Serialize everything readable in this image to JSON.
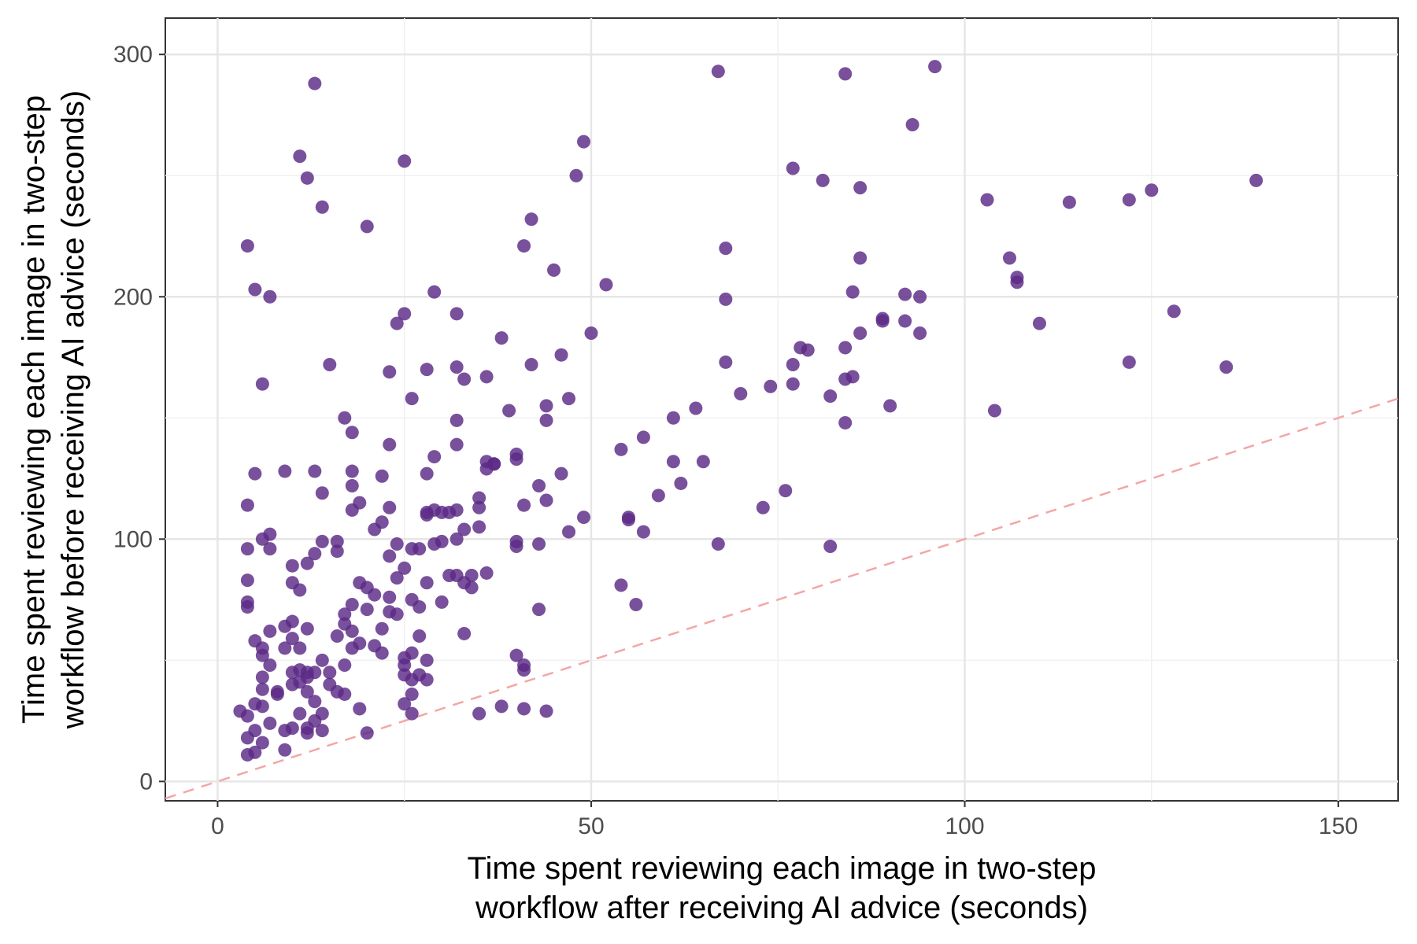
{
  "chart_data": {
    "type": "scatter",
    "xlabel": [
      "Time spent reviewing each image in two-step",
      "workflow after receiving AI advice (seconds)"
    ],
    "ylabel": [
      "Time spent reviewing each image in two-step",
      "workflow before receiving AI advice (seconds)"
    ],
    "xlim": [
      -7,
      158
    ],
    "ylim": [
      -8,
      315
    ],
    "xticks": [
      0,
      50,
      100,
      150
    ],
    "yticks": [
      0,
      100,
      200,
      300
    ],
    "x_minor": [
      25,
      75,
      125
    ],
    "y_minor": [
      50,
      150,
      250
    ],
    "grid": true,
    "reference_line": {
      "slope": 1,
      "intercept": 0,
      "style": "dashed",
      "color": "#f4a6a6"
    },
    "point_color": "#5b2a86",
    "points": [
      [
        3,
        29
      ],
      [
        4,
        27
      ],
      [
        4,
        18
      ],
      [
        4,
        11
      ],
      [
        5,
        12
      ],
      [
        5,
        21
      ],
      [
        6,
        16
      ],
      [
        7,
        24
      ],
      [
        6,
        31
      ],
      [
        5,
        32
      ],
      [
        6,
        38
      ],
      [
        6,
        43
      ],
      [
        8,
        36
      ],
      [
        9,
        13
      ],
      [
        9,
        21
      ],
      [
        10,
        22
      ],
      [
        11,
        28
      ],
      [
        12,
        22
      ],
      [
        12,
        20
      ],
      [
        13,
        33
      ],
      [
        14,
        28
      ],
      [
        14,
        21
      ],
      [
        13,
        25
      ],
      [
        15,
        40
      ],
      [
        15,
        45
      ],
      [
        12,
        45
      ],
      [
        13,
        45
      ],
      [
        14,
        50
      ],
      [
        16,
        37
      ],
      [
        17,
        36
      ],
      [
        19,
        30
      ],
      [
        20,
        20
      ],
      [
        17,
        48
      ],
      [
        18,
        55
      ],
      [
        19,
        57
      ],
      [
        18,
        62
      ],
      [
        16,
        60
      ],
      [
        17,
        65
      ],
      [
        17,
        69
      ],
      [
        18,
        73
      ],
      [
        19,
        82
      ],
      [
        20,
        80
      ],
      [
        21,
        77
      ],
      [
        20,
        71
      ],
      [
        21,
        56
      ],
      [
        22,
        53
      ],
      [
        22,
        63
      ],
      [
        23,
        70
      ],
      [
        24,
        69
      ],
      [
        23,
        76
      ],
      [
        24,
        84
      ],
      [
        25,
        88
      ],
      [
        26,
        96
      ],
      [
        24,
        98
      ],
      [
        23,
        93
      ],
      [
        21,
        104
      ],
      [
        22,
        107
      ],
      [
        23,
        113
      ],
      [
        22,
        126
      ],
      [
        23,
        139
      ],
      [
        18,
        128
      ],
      [
        19,
        115
      ],
      [
        18,
        112
      ],
      [
        18,
        122
      ],
      [
        18,
        144
      ],
      [
        17,
        150
      ],
      [
        15,
        172
      ],
      [
        14,
        119
      ],
      [
        13,
        128
      ],
      [
        14,
        99
      ],
      [
        16,
        99
      ],
      [
        16,
        95
      ],
      [
        13,
        94
      ],
      [
        12,
        90
      ],
      [
        10,
        89
      ],
      [
        10,
        82
      ],
      [
        11,
        79
      ],
      [
        10,
        66
      ],
      [
        11,
        55
      ],
      [
        12,
        63
      ],
      [
        9,
        64
      ],
      [
        7,
        62
      ],
      [
        6,
        52
      ],
      [
        5,
        58
      ],
      [
        6,
        55
      ],
      [
        7,
        48
      ],
      [
        8,
        37
      ],
      [
        10,
        40
      ],
      [
        10,
        45
      ],
      [
        11,
        41
      ],
      [
        11,
        46
      ],
      [
        12,
        37
      ],
      [
        12,
        43
      ],
      [
        10,
        59
      ],
      [
        9,
        55
      ],
      [
        7,
        96
      ],
      [
        7,
        102
      ],
      [
        6,
        100
      ],
      [
        4,
        96
      ],
      [
        4,
        83
      ],
      [
        4,
        74
      ],
      [
        4,
        72
      ],
      [
        4,
        114
      ],
      [
        5,
        127
      ],
      [
        6,
        164
      ],
      [
        5,
        203
      ],
      [
        7,
        200
      ],
      [
        4,
        221
      ],
      [
        9,
        128
      ],
      [
        11,
        258
      ],
      [
        12,
        249
      ],
      [
        13,
        288
      ],
      [
        14,
        237
      ],
      [
        20,
        229
      ],
      [
        25,
        256
      ],
      [
        23,
        169
      ],
      [
        26,
        158
      ],
      [
        24,
        189
      ],
      [
        25,
        193
      ],
      [
        28,
        170
      ],
      [
        29,
        202
      ],
      [
        29,
        134
      ],
      [
        28,
        127
      ],
      [
        28,
        111
      ],
      [
        29,
        112
      ],
      [
        30,
        111
      ],
      [
        31,
        111
      ],
      [
        32,
        112
      ],
      [
        32,
        100
      ],
      [
        30,
        99
      ],
      [
        29,
        98
      ],
      [
        28,
        110
      ],
      [
        27,
        96
      ],
      [
        28,
        82
      ],
      [
        30,
        74
      ],
      [
        31,
        85
      ],
      [
        32,
        85
      ],
      [
        33,
        82
      ],
      [
        34,
        85
      ],
      [
        34,
        80
      ],
      [
        35,
        113
      ],
      [
        35,
        117
      ],
      [
        35,
        105
      ],
      [
        33,
        104
      ],
      [
        36,
        86
      ],
      [
        33,
        61
      ],
      [
        28,
        50
      ],
      [
        26,
        53
      ],
      [
        25,
        51
      ],
      [
        25,
        48
      ],
      [
        25,
        44
      ],
      [
        26,
        42
      ],
      [
        27,
        44
      ],
      [
        28,
        42
      ],
      [
        26,
        36
      ],
      [
        26,
        28
      ],
      [
        25,
        32
      ],
      [
        27,
        60
      ],
      [
        27,
        72
      ],
      [
        26,
        75
      ],
      [
        32,
        193
      ],
      [
        32,
        171
      ],
      [
        33,
        166
      ],
      [
        32,
        149
      ],
      [
        32,
        139
      ],
      [
        36,
        167
      ],
      [
        38,
        183
      ],
      [
        36,
        132
      ],
      [
        36,
        129
      ],
      [
        37,
        131
      ],
      [
        39,
        153
      ],
      [
        40,
        135
      ],
      [
        40,
        133
      ],
      [
        41,
        114
      ],
      [
        40,
        99
      ],
      [
        40,
        97
      ],
      [
        43,
        98
      ],
      [
        43,
        122
      ],
      [
        44,
        116
      ],
      [
        44,
        149
      ],
      [
        44,
        155
      ],
      [
        42,
        172
      ],
      [
        42,
        232
      ],
      [
        41,
        221
      ],
      [
        45,
        211
      ],
      [
        46,
        176
      ],
      [
        46,
        127
      ],
      [
        47,
        158
      ],
      [
        47,
        103
      ],
      [
        49,
        109
      ],
      [
        48,
        250
      ],
      [
        49,
        264
      ],
      [
        50,
        185
      ],
      [
        52,
        205
      ],
      [
        54,
        137
      ],
      [
        54,
        81
      ],
      [
        55,
        108
      ],
      [
        55,
        109
      ],
      [
        56,
        73
      ],
      [
        57,
        103
      ],
      [
        57,
        142
      ],
      [
        59,
        118
      ],
      [
        61,
        150
      ],
      [
        61,
        132
      ],
      [
        62,
        123
      ],
      [
        64,
        154
      ],
      [
        65,
        132
      ],
      [
        67,
        98
      ],
      [
        67,
        293
      ],
      [
        68,
        220
      ],
      [
        68,
        199
      ],
      [
        68,
        173
      ],
      [
        70,
        160
      ],
      [
        73,
        113
      ],
      [
        74,
        163
      ],
      [
        76,
        120
      ],
      [
        77,
        164
      ],
      [
        77,
        172
      ],
      [
        77,
        253
      ],
      [
        78,
        179
      ],
      [
        79,
        178
      ],
      [
        81,
        248
      ],
      [
        82,
        97
      ],
      [
        82,
        159
      ],
      [
        84,
        148
      ],
      [
        84,
        179
      ],
      [
        84,
        166
      ],
      [
        85,
        167
      ],
      [
        85,
        202
      ],
      [
        86,
        185
      ],
      [
        86,
        216
      ],
      [
        86,
        245
      ],
      [
        84,
        292
      ],
      [
        89,
        191
      ],
      [
        89,
        190
      ],
      [
        90,
        155
      ],
      [
        92,
        201
      ],
      [
        92,
        190
      ],
      [
        93,
        271
      ],
      [
        94,
        200
      ],
      [
        94,
        185
      ],
      [
        96,
        295
      ],
      [
        103,
        240
      ],
      [
        104,
        153
      ],
      [
        106,
        216
      ],
      [
        107,
        206
      ],
      [
        107,
        208
      ],
      [
        110,
        189
      ],
      [
        114,
        239
      ],
      [
        122,
        240
      ],
      [
        122,
        173
      ],
      [
        125,
        244
      ],
      [
        128,
        194
      ],
      [
        135,
        171
      ],
      [
        139,
        248
      ],
      [
        37,
        131
      ],
      [
        38,
        31
      ],
      [
        35,
        28
      ],
      [
        40,
        52
      ],
      [
        41,
        48
      ],
      [
        41,
        46
      ],
      [
        43,
        71
      ],
      [
        44,
        29
      ],
      [
        41,
        30
      ]
    ]
  }
}
